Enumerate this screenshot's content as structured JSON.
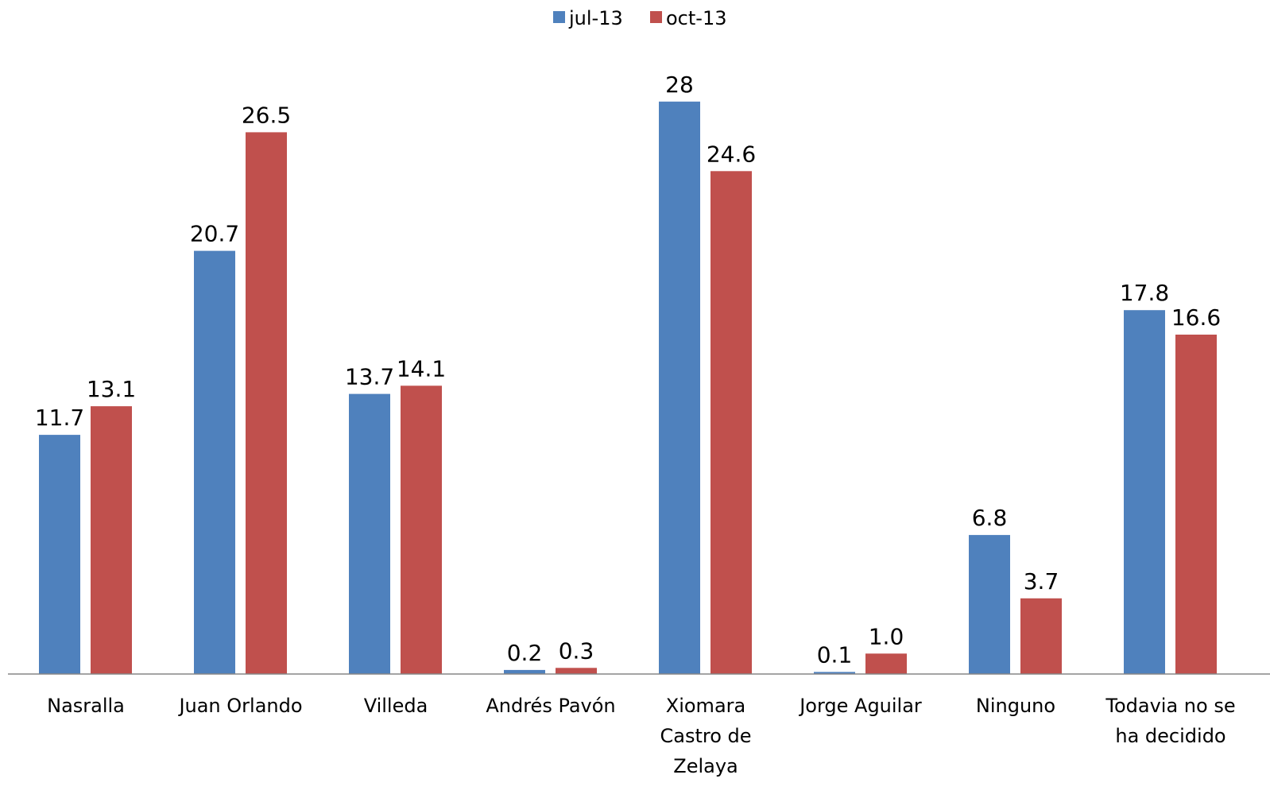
{
  "chart_data": {
    "type": "bar",
    "title": "",
    "xlabel": "",
    "ylabel": "",
    "ylim": [
      0,
      28
    ],
    "grid": false,
    "legend_position": "top-center",
    "categories": [
      [
        "Nasralla"
      ],
      [
        "Juan Orlando"
      ],
      [
        "Villeda"
      ],
      [
        "Andrés Pavón"
      ],
      [
        "Xiomara",
        "Castro de",
        "Zelaya"
      ],
      [
        "Jorge Aguilar"
      ],
      [
        "Ninguno"
      ],
      [
        "Todavia no se",
        "ha decidido"
      ]
    ],
    "series": [
      {
        "name": "jul-13",
        "color": "#4F81BD",
        "values": [
          11.7,
          20.7,
          13.7,
          0.2,
          28,
          0.1,
          6.8,
          17.8
        ],
        "labels": [
          "11.7",
          "20.7",
          "13.7",
          "0.2",
          "28",
          "0.1",
          "6.8",
          "17.8"
        ]
      },
      {
        "name": "oct-13",
        "color": "#C0504D",
        "values": [
          13.1,
          26.5,
          14.1,
          0.3,
          24.6,
          1.0,
          3.7,
          16.6
        ],
        "labels": [
          "13.1",
          "26.5",
          "14.1",
          "0.3",
          "24.6",
          "1.0",
          "3.7",
          "16.6"
        ]
      }
    ]
  }
}
